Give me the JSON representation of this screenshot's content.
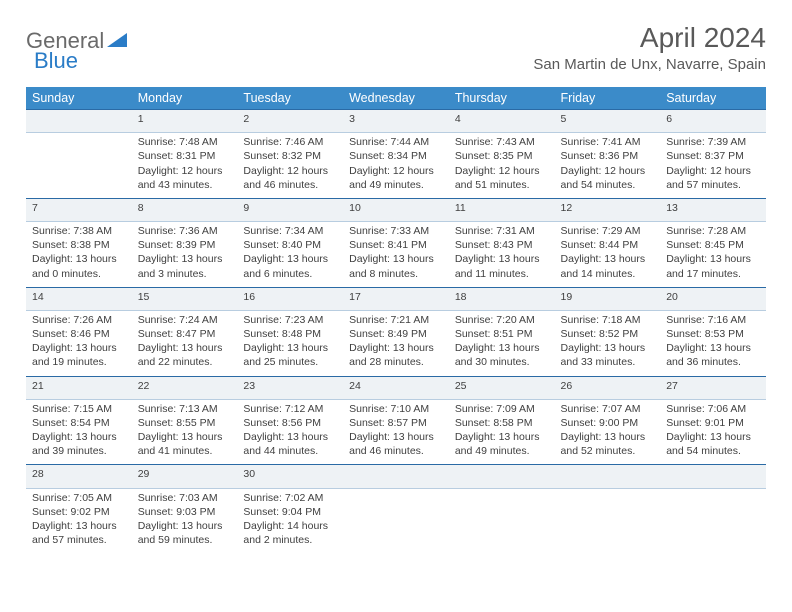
{
  "logo": {
    "text1": "General",
    "text2": "Blue"
  },
  "title": "April 2024",
  "location": "San Martin de Unx, Navarre, Spain",
  "day_headers": [
    "Sunday",
    "Monday",
    "Tuesday",
    "Wednesday",
    "Thursday",
    "Friday",
    "Saturday"
  ],
  "colors": {
    "header_bg": "#3b8bc9",
    "header_text": "#ffffff",
    "daynum_bg": "#eef2f5",
    "daynum_border_top": "#2a6aa5",
    "daynum_border_bottom": "#b8cde0",
    "body_text": "#404040",
    "title_text": "#595959",
    "logo_gray": "#6a6a6a",
    "logo_blue": "#2a7cc7",
    "background": "#ffffff"
  },
  "typography": {
    "title_fontsize": 28,
    "location_fontsize": 15,
    "header_fontsize": 12.5,
    "cell_fontsize": 10.5,
    "daynum_fontsize": 12
  },
  "weeks": [
    [
      {
        "n": "",
        "sunrise": "",
        "sunset": "",
        "daylight": ""
      },
      {
        "n": "1",
        "sunrise": "Sunrise: 7:48 AM",
        "sunset": "Sunset: 8:31 PM",
        "daylight": "Daylight: 12 hours and 43 minutes."
      },
      {
        "n": "2",
        "sunrise": "Sunrise: 7:46 AM",
        "sunset": "Sunset: 8:32 PM",
        "daylight": "Daylight: 12 hours and 46 minutes."
      },
      {
        "n": "3",
        "sunrise": "Sunrise: 7:44 AM",
        "sunset": "Sunset: 8:34 PM",
        "daylight": "Daylight: 12 hours and 49 minutes."
      },
      {
        "n": "4",
        "sunrise": "Sunrise: 7:43 AM",
        "sunset": "Sunset: 8:35 PM",
        "daylight": "Daylight: 12 hours and 51 minutes."
      },
      {
        "n": "5",
        "sunrise": "Sunrise: 7:41 AM",
        "sunset": "Sunset: 8:36 PM",
        "daylight": "Daylight: 12 hours and 54 minutes."
      },
      {
        "n": "6",
        "sunrise": "Sunrise: 7:39 AM",
        "sunset": "Sunset: 8:37 PM",
        "daylight": "Daylight: 12 hours and 57 minutes."
      }
    ],
    [
      {
        "n": "7",
        "sunrise": "Sunrise: 7:38 AM",
        "sunset": "Sunset: 8:38 PM",
        "daylight": "Daylight: 13 hours and 0 minutes."
      },
      {
        "n": "8",
        "sunrise": "Sunrise: 7:36 AM",
        "sunset": "Sunset: 8:39 PM",
        "daylight": "Daylight: 13 hours and 3 minutes."
      },
      {
        "n": "9",
        "sunrise": "Sunrise: 7:34 AM",
        "sunset": "Sunset: 8:40 PM",
        "daylight": "Daylight: 13 hours and 6 minutes."
      },
      {
        "n": "10",
        "sunrise": "Sunrise: 7:33 AM",
        "sunset": "Sunset: 8:41 PM",
        "daylight": "Daylight: 13 hours and 8 minutes."
      },
      {
        "n": "11",
        "sunrise": "Sunrise: 7:31 AM",
        "sunset": "Sunset: 8:43 PM",
        "daylight": "Daylight: 13 hours and 11 minutes."
      },
      {
        "n": "12",
        "sunrise": "Sunrise: 7:29 AM",
        "sunset": "Sunset: 8:44 PM",
        "daylight": "Daylight: 13 hours and 14 minutes."
      },
      {
        "n": "13",
        "sunrise": "Sunrise: 7:28 AM",
        "sunset": "Sunset: 8:45 PM",
        "daylight": "Daylight: 13 hours and 17 minutes."
      }
    ],
    [
      {
        "n": "14",
        "sunrise": "Sunrise: 7:26 AM",
        "sunset": "Sunset: 8:46 PM",
        "daylight": "Daylight: 13 hours and 19 minutes."
      },
      {
        "n": "15",
        "sunrise": "Sunrise: 7:24 AM",
        "sunset": "Sunset: 8:47 PM",
        "daylight": "Daylight: 13 hours and 22 minutes."
      },
      {
        "n": "16",
        "sunrise": "Sunrise: 7:23 AM",
        "sunset": "Sunset: 8:48 PM",
        "daylight": "Daylight: 13 hours and 25 minutes."
      },
      {
        "n": "17",
        "sunrise": "Sunrise: 7:21 AM",
        "sunset": "Sunset: 8:49 PM",
        "daylight": "Daylight: 13 hours and 28 minutes."
      },
      {
        "n": "18",
        "sunrise": "Sunrise: 7:20 AM",
        "sunset": "Sunset: 8:51 PM",
        "daylight": "Daylight: 13 hours and 30 minutes."
      },
      {
        "n": "19",
        "sunrise": "Sunrise: 7:18 AM",
        "sunset": "Sunset: 8:52 PM",
        "daylight": "Daylight: 13 hours and 33 minutes."
      },
      {
        "n": "20",
        "sunrise": "Sunrise: 7:16 AM",
        "sunset": "Sunset: 8:53 PM",
        "daylight": "Daylight: 13 hours and 36 minutes."
      }
    ],
    [
      {
        "n": "21",
        "sunrise": "Sunrise: 7:15 AM",
        "sunset": "Sunset: 8:54 PM",
        "daylight": "Daylight: 13 hours and 39 minutes."
      },
      {
        "n": "22",
        "sunrise": "Sunrise: 7:13 AM",
        "sunset": "Sunset: 8:55 PM",
        "daylight": "Daylight: 13 hours and 41 minutes."
      },
      {
        "n": "23",
        "sunrise": "Sunrise: 7:12 AM",
        "sunset": "Sunset: 8:56 PM",
        "daylight": "Daylight: 13 hours and 44 minutes."
      },
      {
        "n": "24",
        "sunrise": "Sunrise: 7:10 AM",
        "sunset": "Sunset: 8:57 PM",
        "daylight": "Daylight: 13 hours and 46 minutes."
      },
      {
        "n": "25",
        "sunrise": "Sunrise: 7:09 AM",
        "sunset": "Sunset: 8:58 PM",
        "daylight": "Daylight: 13 hours and 49 minutes."
      },
      {
        "n": "26",
        "sunrise": "Sunrise: 7:07 AM",
        "sunset": "Sunset: 9:00 PM",
        "daylight": "Daylight: 13 hours and 52 minutes."
      },
      {
        "n": "27",
        "sunrise": "Sunrise: 7:06 AM",
        "sunset": "Sunset: 9:01 PM",
        "daylight": "Daylight: 13 hours and 54 minutes."
      }
    ],
    [
      {
        "n": "28",
        "sunrise": "Sunrise: 7:05 AM",
        "sunset": "Sunset: 9:02 PM",
        "daylight": "Daylight: 13 hours and 57 minutes."
      },
      {
        "n": "29",
        "sunrise": "Sunrise: 7:03 AM",
        "sunset": "Sunset: 9:03 PM",
        "daylight": "Daylight: 13 hours and 59 minutes."
      },
      {
        "n": "30",
        "sunrise": "Sunrise: 7:02 AM",
        "sunset": "Sunset: 9:04 PM",
        "daylight": "Daylight: 14 hours and 2 minutes."
      },
      {
        "n": "",
        "sunrise": "",
        "sunset": "",
        "daylight": ""
      },
      {
        "n": "",
        "sunrise": "",
        "sunset": "",
        "daylight": ""
      },
      {
        "n": "",
        "sunrise": "",
        "sunset": "",
        "daylight": ""
      },
      {
        "n": "",
        "sunrise": "",
        "sunset": "",
        "daylight": ""
      }
    ]
  ]
}
